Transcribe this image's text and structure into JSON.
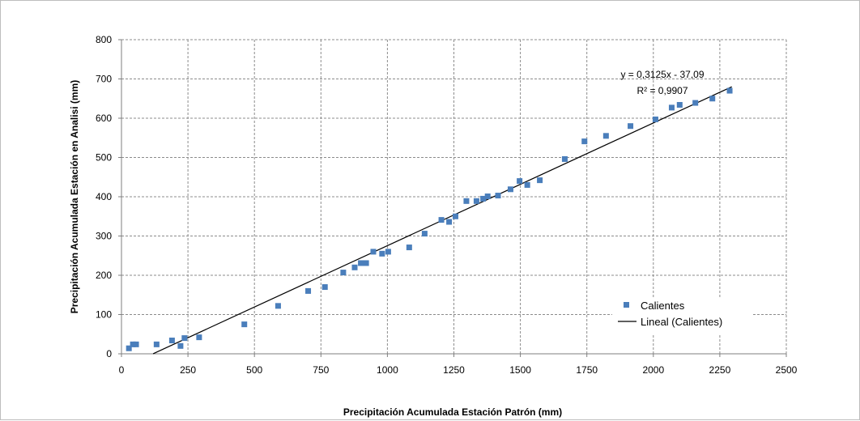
{
  "chart_data": {
    "type": "scatter",
    "xlabel": "Precipitación Acumulada Estación Patrón (mm)",
    "ylabel": "Precipitación Acumulada Estación en Analisi (mm)",
    "xlim": [
      0,
      2500
    ],
    "ylim": [
      0,
      800
    ],
    "x_ticks": [
      0,
      250,
      500,
      750,
      1000,
      1250,
      1500,
      1750,
      2000,
      2250,
      2500
    ],
    "y_ticks": [
      0,
      100,
      200,
      300,
      400,
      500,
      600,
      700,
      800
    ],
    "grid": true,
    "grid_style": "dashed",
    "legend_position": "bottom-right",
    "series": [
      {
        "name": "Calientes",
        "color": "#4a7ebb",
        "marker": "square",
        "points": [
          [
            28,
            14
          ],
          [
            43,
            24
          ],
          [
            55,
            24
          ],
          [
            132,
            24
          ],
          [
            190,
            34
          ],
          [
            222,
            20
          ],
          [
            237,
            40
          ],
          [
            292,
            42
          ],
          [
            462,
            75
          ],
          [
            589,
            122
          ],
          [
            702,
            160
          ],
          [
            765,
            170
          ],
          [
            834,
            207
          ],
          [
            877,
            220
          ],
          [
            900,
            231
          ],
          [
            920,
            231
          ],
          [
            947,
            260
          ],
          [
            980,
            255
          ],
          [
            1003,
            260
          ],
          [
            1082,
            271
          ],
          [
            1140,
            306
          ],
          [
            1203,
            341
          ],
          [
            1232,
            336
          ],
          [
            1256,
            350
          ],
          [
            1297,
            389
          ],
          [
            1335,
            389
          ],
          [
            1360,
            395
          ],
          [
            1377,
            401
          ],
          [
            1416,
            403
          ],
          [
            1463,
            419
          ],
          [
            1497,
            440
          ],
          [
            1526,
            430
          ],
          [
            1573,
            442
          ],
          [
            1667,
            496
          ],
          [
            1741,
            541
          ],
          [
            1822,
            555
          ],
          [
            1914,
            580
          ],
          [
            2008,
            597
          ],
          [
            2069,
            627
          ],
          [
            2099,
            634
          ],
          [
            2158,
            639
          ],
          [
            2222,
            650
          ],
          [
            2287,
            670
          ]
        ]
      }
    ],
    "trendline": {
      "name": "Lineal (Calientes)",
      "color": "#000000",
      "slope": 0.3125,
      "intercept": -37.09,
      "x_range": [
        119,
        2295
      ],
      "equation_label": "y = 0,3125x - 37,09",
      "r2_label": "R² = 0,9907"
    }
  }
}
